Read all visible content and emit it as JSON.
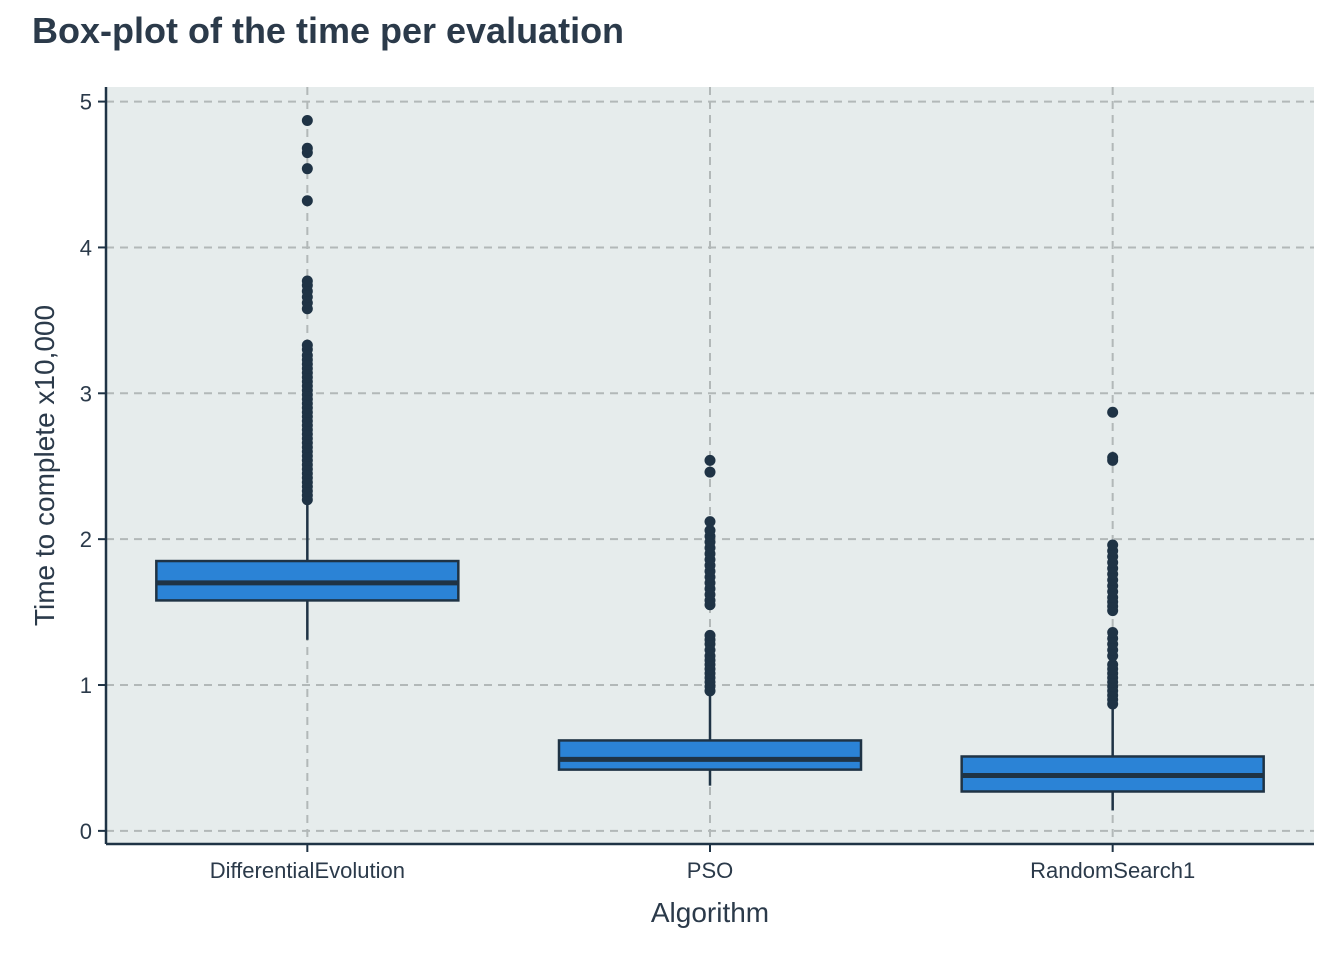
{
  "chart_data": {
    "type": "box",
    "title": "Box-plot of the time per evaluation",
    "xlabel": "Algorithm",
    "ylabel": "Time to complete x10,000",
    "ylim": [
      -0.09,
      5.1
    ],
    "yticks": [
      0,
      1,
      2,
      3,
      4,
      5
    ],
    "grid": true,
    "categories": [
      "DifferentialEvolution",
      "PSO",
      "RandomSearch1"
    ],
    "boxes": [
      {
        "category": "DifferentialEvolution",
        "whisker_low": 1.31,
        "q1": 1.58,
        "median": 1.7,
        "q3": 1.85,
        "whisker_high": 2.25,
        "outliers": [
          2.27,
          2.3,
          2.33,
          2.36,
          2.39,
          2.42,
          2.45,
          2.48,
          2.51,
          2.54,
          2.57,
          2.6,
          2.63,
          2.66,
          2.69,
          2.72,
          2.75,
          2.78,
          2.81,
          2.84,
          2.87,
          2.9,
          2.93,
          2.96,
          2.99,
          3.02,
          3.05,
          3.08,
          3.11,
          3.14,
          3.17,
          3.2,
          3.23,
          3.26,
          3.3,
          3.33,
          3.58,
          3.62,
          3.66,
          3.7,
          3.74,
          3.77,
          4.32,
          4.54,
          4.65,
          4.68,
          4.87
        ]
      },
      {
        "category": "PSO",
        "whisker_low": 0.31,
        "q1": 0.42,
        "median": 0.49,
        "q3": 0.62,
        "whisker_high": 0.95,
        "outliers": [
          0.96,
          0.99,
          1.02,
          1.05,
          1.08,
          1.11,
          1.14,
          1.17,
          1.2,
          1.24,
          1.28,
          1.31,
          1.34,
          1.55,
          1.58,
          1.62,
          1.66,
          1.7,
          1.74,
          1.78,
          1.82,
          1.86,
          1.9,
          1.94,
          1.98,
          2.02,
          2.06,
          2.12,
          2.46,
          2.54
        ]
      },
      {
        "category": "RandomSearch1",
        "whisker_low": 0.14,
        "q1": 0.27,
        "median": 0.38,
        "q3": 0.51,
        "whisker_high": 0.86,
        "outliers": [
          0.87,
          0.9,
          0.93,
          0.96,
          0.99,
          1.02,
          1.05,
          1.08,
          1.11,
          1.14,
          1.2,
          1.24,
          1.28,
          1.32,
          1.36,
          1.51,
          1.54,
          1.57,
          1.6,
          1.64,
          1.68,
          1.72,
          1.76,
          1.8,
          1.84,
          1.88,
          1.92,
          1.96,
          2.54,
          2.56,
          2.87
        ]
      }
    ],
    "colors": {
      "box_fill": "#2b83d6",
      "outline": "#1f3345",
      "panel_bg": "#e6ecec",
      "grid": "#b2b8b8",
      "text": "#2b3a4a"
    }
  }
}
